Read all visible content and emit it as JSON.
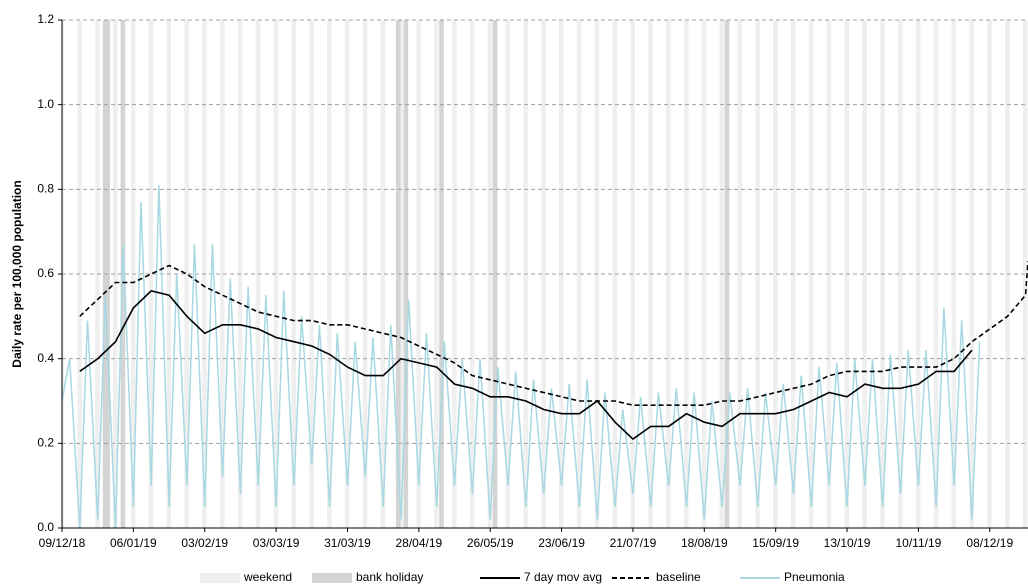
{
  "chart_data": {
    "type": "line",
    "y_label": "Daily rate per 100,000 population",
    "ylim": [
      0,
      1.2
    ],
    "yticks": [
      {
        "value": 0,
        "label": "0.0"
      },
      {
        "value": 0.2,
        "label": "0.2"
      },
      {
        "value": 0.4,
        "label": "0.4"
      },
      {
        "value": 0.6,
        "label": "0.6"
      },
      {
        "value": 0.8,
        "label": "0.8"
      },
      {
        "value": 1,
        "label": "1.0"
      },
      {
        "value": 1.2,
        "label": "1.2"
      }
    ],
    "xlim": [
      "09/12/18",
      "23/12/19"
    ],
    "xticks": [
      "09/12/18",
      "06/01/19",
      "03/02/19",
      "03/03/19",
      "31/03/19",
      "28/04/19",
      "26/05/19",
      "23/06/19",
      "21/07/19",
      "18/08/19",
      "15/09/19",
      "13/10/19",
      "10/11/19",
      "08/12/19"
    ],
    "grid": true,
    "bands": [
      {
        "name": "weekend",
        "color": "#efefef",
        "dates": [
          "08/12/18",
          "15/12/18",
          "22/12/18",
          "29/12/18",
          "05/01/19",
          "12/01/19",
          "19/01/19",
          "26/01/19",
          "02/02/19",
          "09/02/19",
          "16/02/19",
          "23/02/19",
          "02/03/19",
          "09/03/19",
          "16/03/19",
          "23/03/19",
          "30/03/19",
          "06/04/19",
          "13/04/19",
          "20/04/19",
          "27/04/19",
          "04/05/19",
          "11/05/19",
          "18/05/19",
          "25/05/19",
          "01/06/19",
          "08/06/19",
          "15/06/19",
          "22/06/19",
          "29/06/19",
          "06/07/19",
          "13/07/19",
          "20/07/19",
          "27/07/19",
          "03/08/19",
          "10/08/19",
          "17/08/19",
          "24/08/19",
          "31/08/19",
          "07/09/19",
          "14/09/19",
          "21/09/19",
          "28/09/19",
          "05/10/19",
          "12/10/19",
          "19/10/19",
          "26/10/19",
          "02/11/19",
          "09/11/19",
          "16/11/19",
          "23/11/19",
          "30/11/19",
          "07/12/19",
          "14/12/19",
          "21/12/19"
        ]
      },
      {
        "name": "bank holiday",
        "color": "#d4d4d4",
        "dates": [
          "25/12/18",
          "26/12/18",
          "01/01/19",
          "19/04/19",
          "22/04/19",
          "06/05/19",
          "27/05/19",
          "26/08/19"
        ]
      }
    ],
    "series": [
      {
        "name": "7 day mov avg",
        "color": "#000000",
        "dash": false,
        "x": [
          "16/12/18",
          "23/12/18",
          "30/12/18",
          "06/01/19",
          "13/01/19",
          "20/01/19",
          "27/01/19",
          "03/02/19",
          "10/02/19",
          "17/02/19",
          "24/02/19",
          "03/03/19",
          "10/03/19",
          "17/03/19",
          "24/03/19",
          "31/03/19",
          "07/04/19",
          "14/04/19",
          "21/04/19",
          "28/04/19",
          "05/05/19",
          "12/05/19",
          "19/05/19",
          "26/05/19",
          "02/06/19",
          "09/06/19",
          "16/06/19",
          "23/06/19",
          "30/06/19",
          "07/07/19",
          "14/07/19",
          "21/07/19",
          "28/07/19",
          "04/08/19",
          "11/08/19",
          "18/08/19",
          "25/08/19",
          "01/09/19",
          "08/09/19",
          "15/09/19",
          "22/09/19",
          "29/09/19",
          "06/10/19",
          "13/10/19",
          "20/10/19",
          "27/10/19",
          "03/11/19",
          "10/11/19",
          "17/11/19",
          "24/11/19",
          "01/12/19"
        ],
        "values": [
          0.37,
          0.4,
          0.44,
          0.52,
          0.56,
          0.55,
          0.5,
          0.46,
          0.48,
          0.48,
          0.47,
          0.45,
          0.44,
          0.43,
          0.41,
          0.38,
          0.36,
          0.36,
          0.4,
          0.39,
          0.38,
          0.34,
          0.33,
          0.31,
          0.31,
          0.3,
          0.28,
          0.27,
          0.27,
          0.3,
          0.25,
          0.21,
          0.24,
          0.24,
          0.27,
          0.25,
          0.24,
          0.27,
          0.27,
          0.27,
          0.28,
          0.3,
          0.32,
          0.31,
          0.34,
          0.33,
          0.33,
          0.34,
          0.37,
          0.37,
          0.42
        ]
      },
      {
        "name": "baseline",
        "color": "#000000",
        "dash": true,
        "x": [
          "16/12/18",
          "23/12/18",
          "30/12/18",
          "06/01/19",
          "13/01/19",
          "20/01/19",
          "27/01/19",
          "03/02/19",
          "10/02/19",
          "17/02/19",
          "24/02/19",
          "03/03/19",
          "10/03/19",
          "17/03/19",
          "24/03/19",
          "31/03/19",
          "07/04/19",
          "14/04/19",
          "21/04/19",
          "28/04/19",
          "05/05/19",
          "12/05/19",
          "19/05/19",
          "26/05/19",
          "02/06/19",
          "09/06/19",
          "16/06/19",
          "23/06/19",
          "30/06/19",
          "07/07/19",
          "14/07/19",
          "21/07/19",
          "28/07/19",
          "04/08/19",
          "11/08/19",
          "18/08/19",
          "25/08/19",
          "01/09/19",
          "08/09/19",
          "15/09/19",
          "22/09/19",
          "29/09/19",
          "06/10/19",
          "13/10/19",
          "20/10/19",
          "27/10/19",
          "03/11/19",
          "10/11/19",
          "17/11/19",
          "24/11/19",
          "01/12/19",
          "08/12/19",
          "15/12/19",
          "22/12/19",
          "23/12/19"
        ],
        "values": [
          0.5,
          0.54,
          0.58,
          0.58,
          0.6,
          0.62,
          0.6,
          0.57,
          0.55,
          0.53,
          0.51,
          0.5,
          0.49,
          0.49,
          0.48,
          0.48,
          0.47,
          0.46,
          0.45,
          0.43,
          0.41,
          0.39,
          0.36,
          0.35,
          0.34,
          0.33,
          0.32,
          0.31,
          0.3,
          0.3,
          0.3,
          0.29,
          0.29,
          0.29,
          0.29,
          0.29,
          0.3,
          0.3,
          0.31,
          0.32,
          0.33,
          0.34,
          0.36,
          0.37,
          0.37,
          0.37,
          0.38,
          0.38,
          0.38,
          0.4,
          0.44,
          0.47,
          0.5,
          0.55,
          0.63
        ]
      },
      {
        "name": "Pneumonia",
        "color": "#a8d8e2",
        "dash": false,
        "x": [
          "09/12/18",
          "12/12/18",
          "16/12/18",
          "19/12/18",
          "23/12/18",
          "26/12/18",
          "30/12/18",
          "02/01/19",
          "06/01/19",
          "09/01/19",
          "13/01/19",
          "16/01/19",
          "20/01/19",
          "23/01/19",
          "27/01/19",
          "30/01/19",
          "03/02/19",
          "06/02/19",
          "10/02/19",
          "13/02/19",
          "17/02/19",
          "20/02/19",
          "24/02/19",
          "27/02/19",
          "03/03/19",
          "06/03/19",
          "10/03/19",
          "13/03/19",
          "17/03/19",
          "20/03/19",
          "24/03/19",
          "27/03/19",
          "31/03/19",
          "03/04/19",
          "07/04/19",
          "10/04/19",
          "14/04/19",
          "17/04/19",
          "21/04/19",
          "24/04/19",
          "28/04/19",
          "01/05/19",
          "05/05/19",
          "08/05/19",
          "12/05/19",
          "15/05/19",
          "19/05/19",
          "22/05/19",
          "26/05/19",
          "29/05/19",
          "02/06/19",
          "05/06/19",
          "09/06/19",
          "12/06/19",
          "16/06/19",
          "19/06/19",
          "23/06/19",
          "26/06/19",
          "30/06/19",
          "03/07/19",
          "07/07/19",
          "10/07/19",
          "14/07/19",
          "17/07/19",
          "21/07/19",
          "24/07/19",
          "28/07/19",
          "31/07/19",
          "04/08/19",
          "07/08/19",
          "11/08/19",
          "14/08/19",
          "18/08/19",
          "21/08/19",
          "25/08/19",
          "28/08/19",
          "01/09/19",
          "04/09/19",
          "08/09/19",
          "11/09/19",
          "15/09/19",
          "18/09/19",
          "22/09/19",
          "25/09/19",
          "29/09/19",
          "02/10/19",
          "06/10/19",
          "09/10/19",
          "13/10/19",
          "16/10/19",
          "20/10/19",
          "23/10/19",
          "27/10/19",
          "30/10/19",
          "03/11/19",
          "06/11/19",
          "10/11/19",
          "13/11/19",
          "17/11/19",
          "20/11/19",
          "24/11/19",
          "27/11/19",
          "01/12/19",
          "04/12/19"
        ],
        "values": [
          0.3,
          0.4,
          0.0,
          0.49,
          0.02,
          0.55,
          0.0,
          0.67,
          0.05,
          0.77,
          0.1,
          0.81,
          0.05,
          0.6,
          0.1,
          0.67,
          0.05,
          0.67,
          0.12,
          0.59,
          0.08,
          0.57,
          0.1,
          0.55,
          0.05,
          0.56,
          0.1,
          0.5,
          0.15,
          0.48,
          0.05,
          0.46,
          0.1,
          0.44,
          0.12,
          0.45,
          0.05,
          0.48,
          0.02,
          0.54,
          0.1,
          0.46,
          0.05,
          0.44,
          0.1,
          0.4,
          0.08,
          0.4,
          0.02,
          0.38,
          0.1,
          0.37,
          0.05,
          0.35,
          0.08,
          0.33,
          0.1,
          0.34,
          0.05,
          0.35,
          0.02,
          0.32,
          0.05,
          0.28,
          0.08,
          0.31,
          0.05,
          0.32,
          0.1,
          0.33,
          0.05,
          0.32,
          0.02,
          0.3,
          0.05,
          0.32,
          0.1,
          0.33,
          0.05,
          0.32,
          0.1,
          0.34,
          0.08,
          0.36,
          0.05,
          0.38,
          0.1,
          0.39,
          0.05,
          0.4,
          0.1,
          0.4,
          0.05,
          0.41,
          0.08,
          0.42,
          0.1,
          0.42,
          0.05,
          0.52,
          0.1,
          0.49,
          0.02,
          0.44
        ]
      }
    ]
  }
}
